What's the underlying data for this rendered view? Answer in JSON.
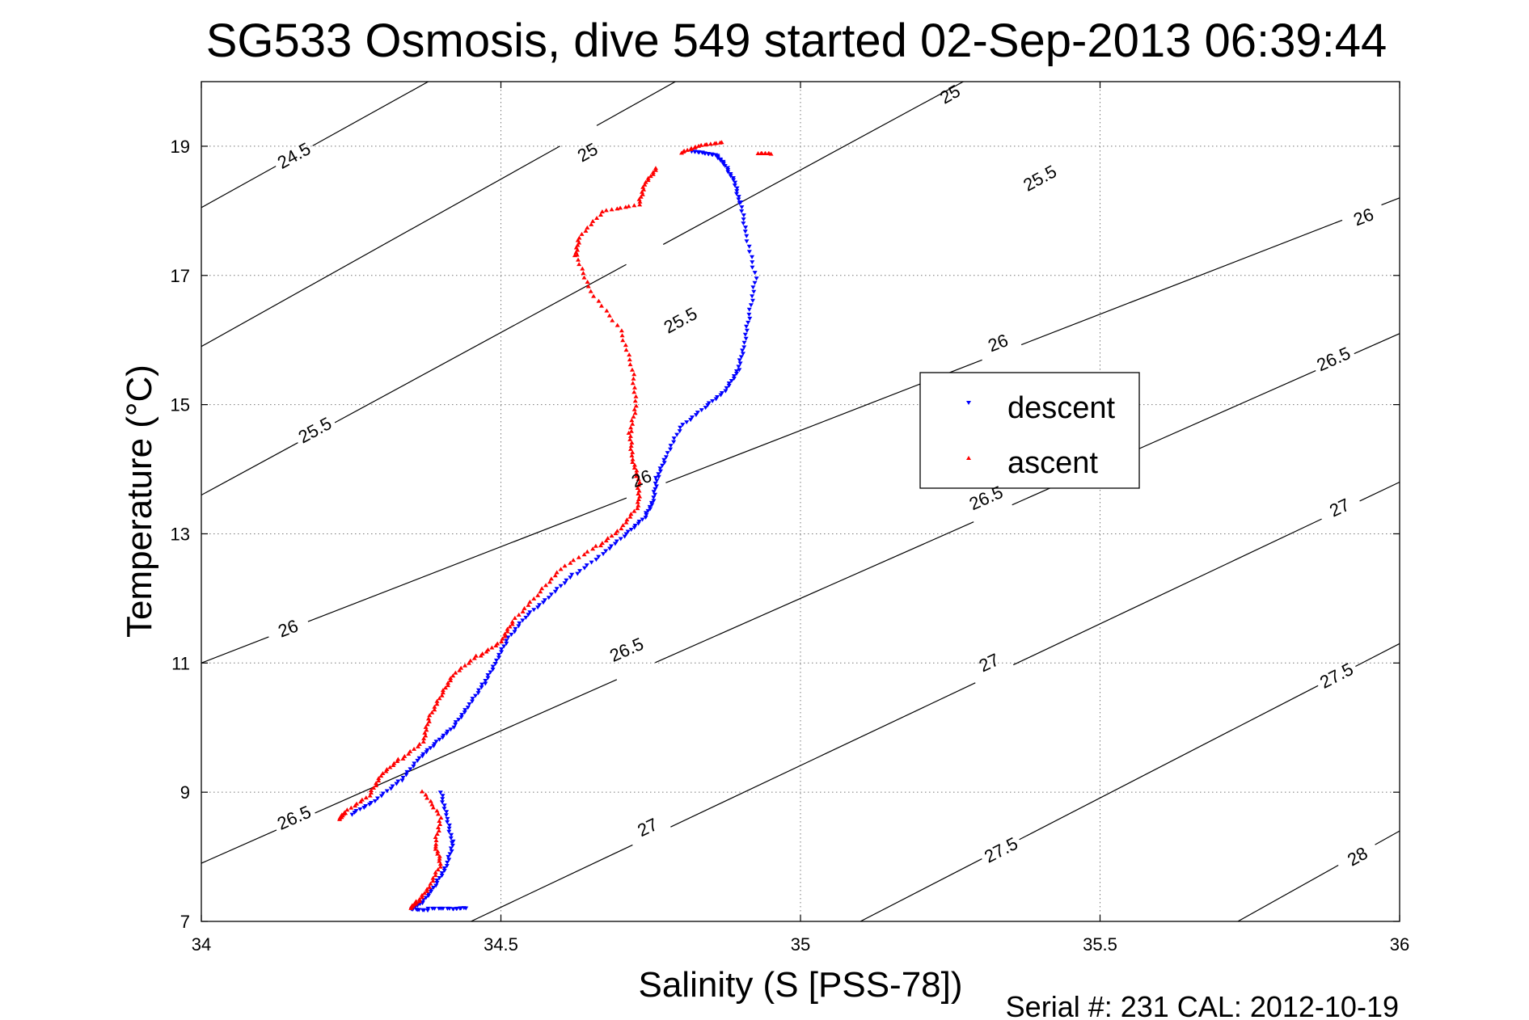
{
  "chart_data": {
    "type": "scatter",
    "title": "SG533 Osmosis, dive 549 started 02-Sep-2013 06:39:44",
    "xlabel": "Salinity (S [PSS-78])",
    "ylabel": "Temperature (°C)",
    "xlim": [
      34,
      36
    ],
    "ylim": [
      7,
      20
    ],
    "x_ticks": [
      "34",
      "34.5",
      "35",
      "35.5",
      "36"
    ],
    "y_ticks": [
      "7",
      "9",
      "11",
      "13",
      "15",
      "17",
      "19"
    ],
    "grid": true,
    "legend_position": "right-middle",
    "footer": "Serial #: 231  CAL: 2012-10-19",
    "colors": {
      "descent": "#0000ff",
      "ascent": "#ff0000",
      "contour": "#000000"
    },
    "density_contours": [
      {
        "level": 24.5,
        "slope": 5.2,
        "points": [
          [
            34.0,
            18.05
          ],
          [
            34.67,
            21.5
          ]
        ],
        "labels": [
          [
            34.155,
            18.85,
            "24.5"
          ]
        ]
      },
      {
        "level": 25,
        "slope": 5.2,
        "points": [
          [
            34.0,
            15.9
          ],
          [
            35.1,
            21.6
          ]
        ],
        "labels": [
          [
            34.645,
            18.9,
            "25"
          ],
          [
            35.25,
            19.8,
            "25"
          ]
        ]
      },
      {
        "level": 25.5,
        "slope": 5.0,
        "points": [
          [
            34.0,
            13.6
          ],
          [
            35.55,
            21.4
          ]
        ],
        "labels": [
          [
            34.19,
            14.6,
            "25.5"
          ],
          [
            34.8,
            16.3,
            "25.5"
          ],
          [
            35.4,
            18.5,
            "25.5"
          ]
        ]
      },
      {
        "level": 26,
        "slope": 5.0,
        "points": [
          [
            34.0,
            11.0
          ],
          [
            36.0,
            18.2
          ]
        ],
        "labels": [
          [
            34.145,
            11.53,
            "26"
          ],
          [
            34.735,
            13.85,
            "26"
          ],
          [
            35.33,
            15.95,
            "26"
          ],
          [
            35.94,
            17.9,
            "26"
          ]
        ]
      },
      {
        "level": 26.5,
        "slope": 4.55,
        "points": [
          [
            34.0,
            7.9
          ],
          [
            36.0,
            16.1
          ]
        ],
        "labels": [
          [
            34.155,
            8.6,
            "26.5"
          ],
          [
            34.71,
            11.2,
            "26.5"
          ],
          [
            35.31,
            13.55,
            "26.5"
          ],
          [
            35.89,
            15.7,
            "26.5"
          ]
        ]
      },
      {
        "level": 27,
        "slope": 4.3,
        "points": [
          [
            34.45,
            7.0
          ],
          [
            36.0,
            13.8
          ]
        ],
        "labels": [
          [
            34.745,
            8.45,
            "27"
          ],
          [
            35.315,
            11.0,
            "27"
          ],
          [
            35.9,
            13.4,
            "27"
          ]
        ]
      },
      {
        "level": 27.5,
        "slope": 4.1,
        "points": [
          [
            35.1,
            7.0
          ],
          [
            36.0,
            11.3
          ]
        ],
        "labels": [
          [
            35.335,
            8.1,
            "27.5"
          ],
          [
            35.895,
            10.8,
            "27.5"
          ]
        ]
      },
      {
        "level": 28,
        "slope": 3.8,
        "points": [
          [
            35.73,
            7.0
          ],
          [
            36.0,
            8.4
          ]
        ],
        "labels": [
          [
            35.93,
            8.0,
            "28"
          ]
        ]
      }
    ],
    "series": [
      {
        "name": "descent",
        "marker": "triangle-down",
        "points": [
          [
            34.82,
            18.9
          ],
          [
            34.84,
            18.88
          ],
          [
            34.86,
            18.85
          ],
          [
            34.875,
            18.7
          ],
          [
            34.89,
            18.45
          ],
          [
            34.9,
            18.1
          ],
          [
            34.91,
            17.6
          ],
          [
            34.925,
            16.95
          ],
          [
            34.915,
            16.4
          ],
          [
            34.905,
            15.9
          ],
          [
            34.895,
            15.5
          ],
          [
            34.875,
            15.2
          ],
          [
            34.84,
            14.95
          ],
          [
            34.8,
            14.65
          ],
          [
            34.775,
            14.2
          ],
          [
            34.76,
            13.85
          ],
          [
            34.755,
            13.5
          ],
          [
            34.74,
            13.25
          ],
          [
            34.71,
            13.0
          ],
          [
            34.67,
            12.7
          ],
          [
            34.62,
            12.35
          ],
          [
            34.58,
            12.0
          ],
          [
            34.54,
            11.7
          ],
          [
            34.51,
            11.35
          ],
          [
            34.49,
            11.0
          ],
          [
            34.47,
            10.65
          ],
          [
            34.445,
            10.3
          ],
          [
            34.42,
            10.0
          ],
          [
            34.39,
            9.75
          ],
          [
            34.36,
            9.5
          ],
          [
            34.33,
            9.15
          ],
          [
            34.29,
            8.85
          ],
          [
            34.25,
            8.65
          ],
          [
            34.4,
            9.0
          ],
          [
            34.41,
            8.6
          ],
          [
            34.42,
            8.2
          ],
          [
            34.41,
            7.85
          ],
          [
            34.39,
            7.55
          ],
          [
            34.37,
            7.3
          ],
          [
            34.35,
            7.2
          ],
          [
            34.38,
            7.18
          ],
          [
            34.42,
            7.18
          ],
          [
            34.44,
            7.2
          ]
        ]
      },
      {
        "name": "ascent",
        "marker": "triangle-up",
        "points": [
          [
            34.87,
            19.05
          ],
          [
            34.83,
            19.0
          ],
          [
            34.8,
            18.9
          ],
          [
            34.93,
            18.9
          ],
          [
            34.95,
            18.9
          ],
          [
            34.76,
            18.65
          ],
          [
            34.74,
            18.4
          ],
          [
            34.73,
            18.1
          ],
          [
            34.67,
            18.0
          ],
          [
            34.63,
            17.6
          ],
          [
            34.625,
            17.3
          ],
          [
            34.65,
            16.75
          ],
          [
            34.7,
            16.15
          ],
          [
            34.72,
            15.55
          ],
          [
            34.725,
            15.0
          ],
          [
            34.715,
            14.55
          ],
          [
            34.72,
            14.15
          ],
          [
            34.73,
            13.8
          ],
          [
            34.73,
            13.45
          ],
          [
            34.7,
            13.1
          ],
          [
            34.66,
            12.8
          ],
          [
            34.6,
            12.45
          ],
          [
            34.56,
            12.05
          ],
          [
            34.52,
            11.65
          ],
          [
            34.5,
            11.35
          ],
          [
            34.46,
            11.1
          ],
          [
            34.42,
            10.8
          ],
          [
            34.4,
            10.5
          ],
          [
            34.38,
            10.15
          ],
          [
            34.37,
            9.8
          ],
          [
            34.33,
            9.5
          ],
          [
            34.3,
            9.25
          ],
          [
            34.28,
            8.95
          ],
          [
            34.24,
            8.7
          ],
          [
            34.23,
            8.6
          ],
          [
            34.37,
            9.0
          ],
          [
            34.4,
            8.6
          ],
          [
            34.39,
            8.2
          ],
          [
            34.4,
            7.9
          ],
          [
            34.38,
            7.55
          ],
          [
            34.36,
            7.3
          ],
          [
            34.35,
            7.2
          ]
        ]
      }
    ]
  }
}
